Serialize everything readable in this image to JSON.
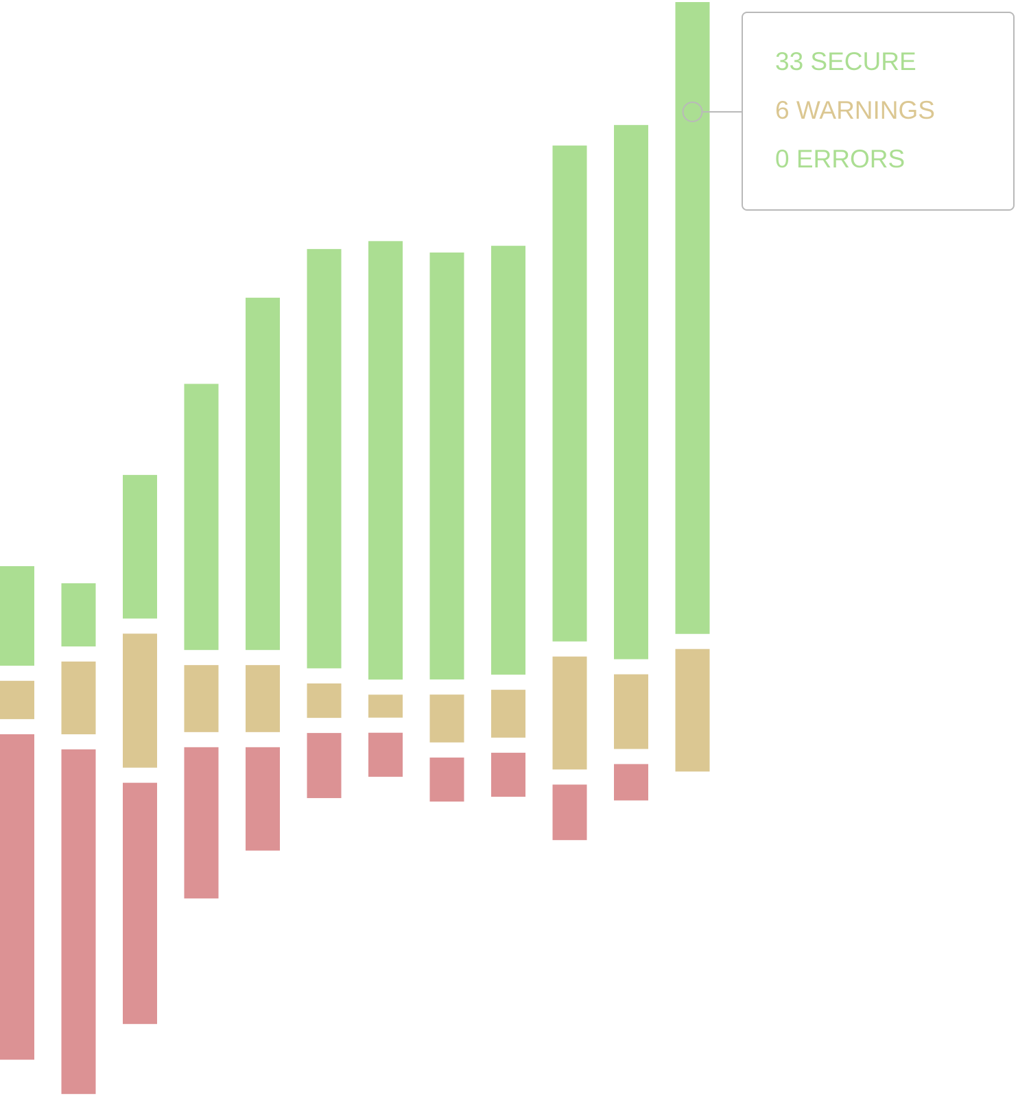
{
  "colors": {
    "secure": "#abde92",
    "warnings": "#dbc792",
    "errors": "#dc9294",
    "tooltip_border": "#b9b9b9"
  },
  "chart_data": {
    "type": "bar",
    "stacked": "diverging",
    "series": [
      {
        "key": "secure",
        "values": [
          5.2,
          3.3,
          7.5,
          13.9,
          18.4,
          21.9,
          22.9,
          22.3,
          22.4,
          25.9,
          27.9,
          33
        ]
      },
      {
        "key": "warnings",
        "values": [
          2.0,
          3.8,
          7.0,
          3.5,
          3.5,
          1.8,
          1.2,
          2.5,
          2.5,
          5.9,
          3.9,
          6.4
        ]
      },
      {
        "key": "errors",
        "values": [
          17.0,
          18.0,
          12.6,
          7.9,
          5.4,
          3.4,
          2.3,
          2.3,
          2.3,
          2.9,
          1.9,
          0
        ]
      }
    ],
    "highlight_index": 11,
    "legend": "none",
    "grid": false,
    "axes": "none"
  },
  "tooltip": {
    "secure_text": "33 SECURE",
    "warnings_text": "6 WARNINGS",
    "errors_text": "0 ERRORS"
  }
}
